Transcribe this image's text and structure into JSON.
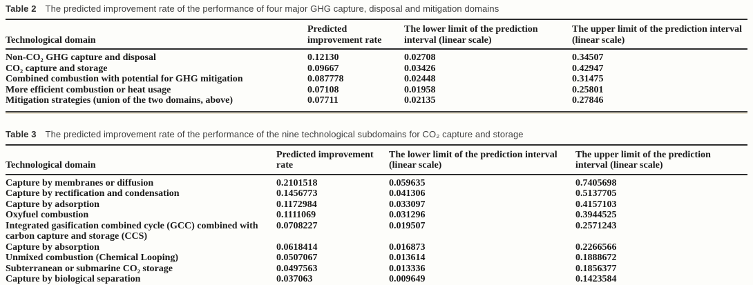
{
  "theme": {
    "background": "#fdfdfa",
    "text_color": "#1b1b1b",
    "caption_color": "#3e3e3e",
    "rule_color": "#2d2d2d",
    "rule_shadow_color": "#ece5d2"
  },
  "tables": [
    {
      "label": "Table 2",
      "caption": "The predicted improvement rate of the performance of four major GHG capture, disposal and mitigation domains",
      "columns": [
        "Technological domain",
        "Predicted improvement rate",
        "The lower limit of the prediction interval (linear scale)",
        "The upper limit of the prediction interval (linear scale)"
      ],
      "rows": [
        [
          "Non-CO₂ GHG capture and disposal",
          "0.12130",
          "0.02708",
          "0.34507"
        ],
        [
          "CO₂ capture and storage",
          "0.09667",
          "0.03426",
          "0.42947"
        ],
        [
          "Combined combustion with potential for GHG mitigation",
          "0.087778",
          "0.02448",
          "0.31475"
        ],
        [
          "More efficient combustion or heat usage",
          "0.07108",
          "0.01958",
          "0.25801"
        ],
        [
          "Mitigation strategies (union of the two domains, above)",
          "0.07711",
          "0.02135",
          "0.27846"
        ]
      ]
    },
    {
      "label": "Table 3",
      "caption": "The predicted improvement rate of the performance of the nine technological subdomains for CO₂ capture and storage",
      "columns": [
        "Technological domain",
        "Predicted improvement rate",
        "The lower limit of the prediction interval (linear scale)",
        "The upper limit of the prediction interval (linear scale)"
      ],
      "rows": [
        [
          "Capture by membranes or diffusion",
          "0.2101518",
          "0.059635",
          "0.7405698"
        ],
        [
          "Capture by rectification and condensation",
          "0.1456773",
          "0.041306",
          "0.5137705"
        ],
        [
          "Capture by adsorption",
          "0.1172984",
          "0.033097",
          "0.4157103"
        ],
        [
          "Oxyfuel combustion",
          "0.1111069",
          "0.031296",
          "0.3944525"
        ],
        [
          "Integrated gasification combined cycle (GCC) combined with carbon capture and storage (CCS)",
          "0.0708227",
          "0.019507",
          "0.2571243"
        ],
        [
          "Capture by absorption",
          "0.0618414",
          "0.016873",
          "0.2266566"
        ],
        [
          "Unmixed combustion (Chemical Looping)",
          "0.0507067",
          "0.013614",
          "0.1888672"
        ],
        [
          "Subterranean or submarine CO₂ storage",
          "0.0497563",
          "0.013336",
          "0.1856377"
        ],
        [
          "Capture by biological separation",
          "0.037063",
          "0.009649",
          "0.1423584"
        ]
      ]
    }
  ]
}
